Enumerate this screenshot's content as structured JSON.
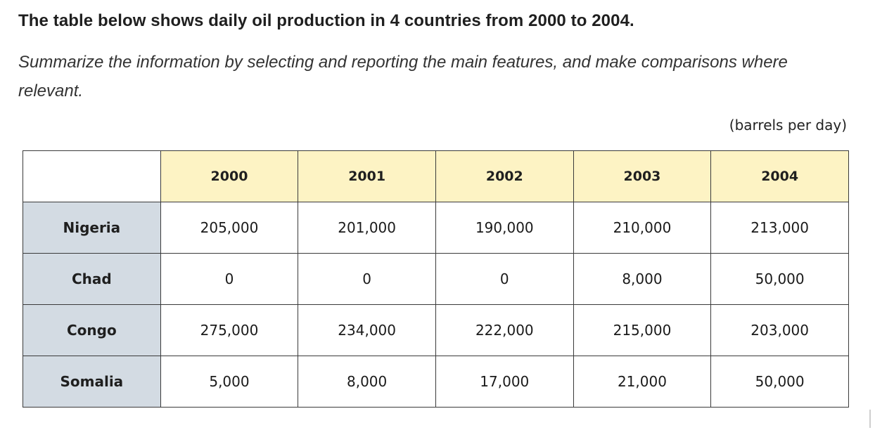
{
  "prompt": {
    "title": "The table below shows daily oil production in 4 countries from 2000 to 2004.",
    "instruction": "Summarize the information by selecting and reporting the main features, and make comparisons where relevant."
  },
  "table": {
    "unit": "(barrels per day)",
    "years": [
      "2000",
      "2001",
      "2002",
      "2003",
      "2004"
    ],
    "rows": [
      {
        "country": "Nigeria",
        "values": [
          "205,000",
          "201,000",
          "190,000",
          "210,000",
          "213,000"
        ]
      },
      {
        "country": "Chad",
        "values": [
          "0",
          "0",
          "0",
          "8,000",
          "50,000"
        ]
      },
      {
        "country": "Congo",
        "values": [
          "275,000",
          "234,000",
          "222,000",
          "215,000",
          "203,000"
        ]
      },
      {
        "country": "Somalia",
        "values": [
          "5,000",
          "8,000",
          "17,000",
          "21,000",
          "50,000"
        ]
      }
    ]
  },
  "colors": {
    "year_header_bg": "#fdf3c4",
    "country_cell_bg": "#d3dbe3",
    "border": "#3a3a3a"
  }
}
